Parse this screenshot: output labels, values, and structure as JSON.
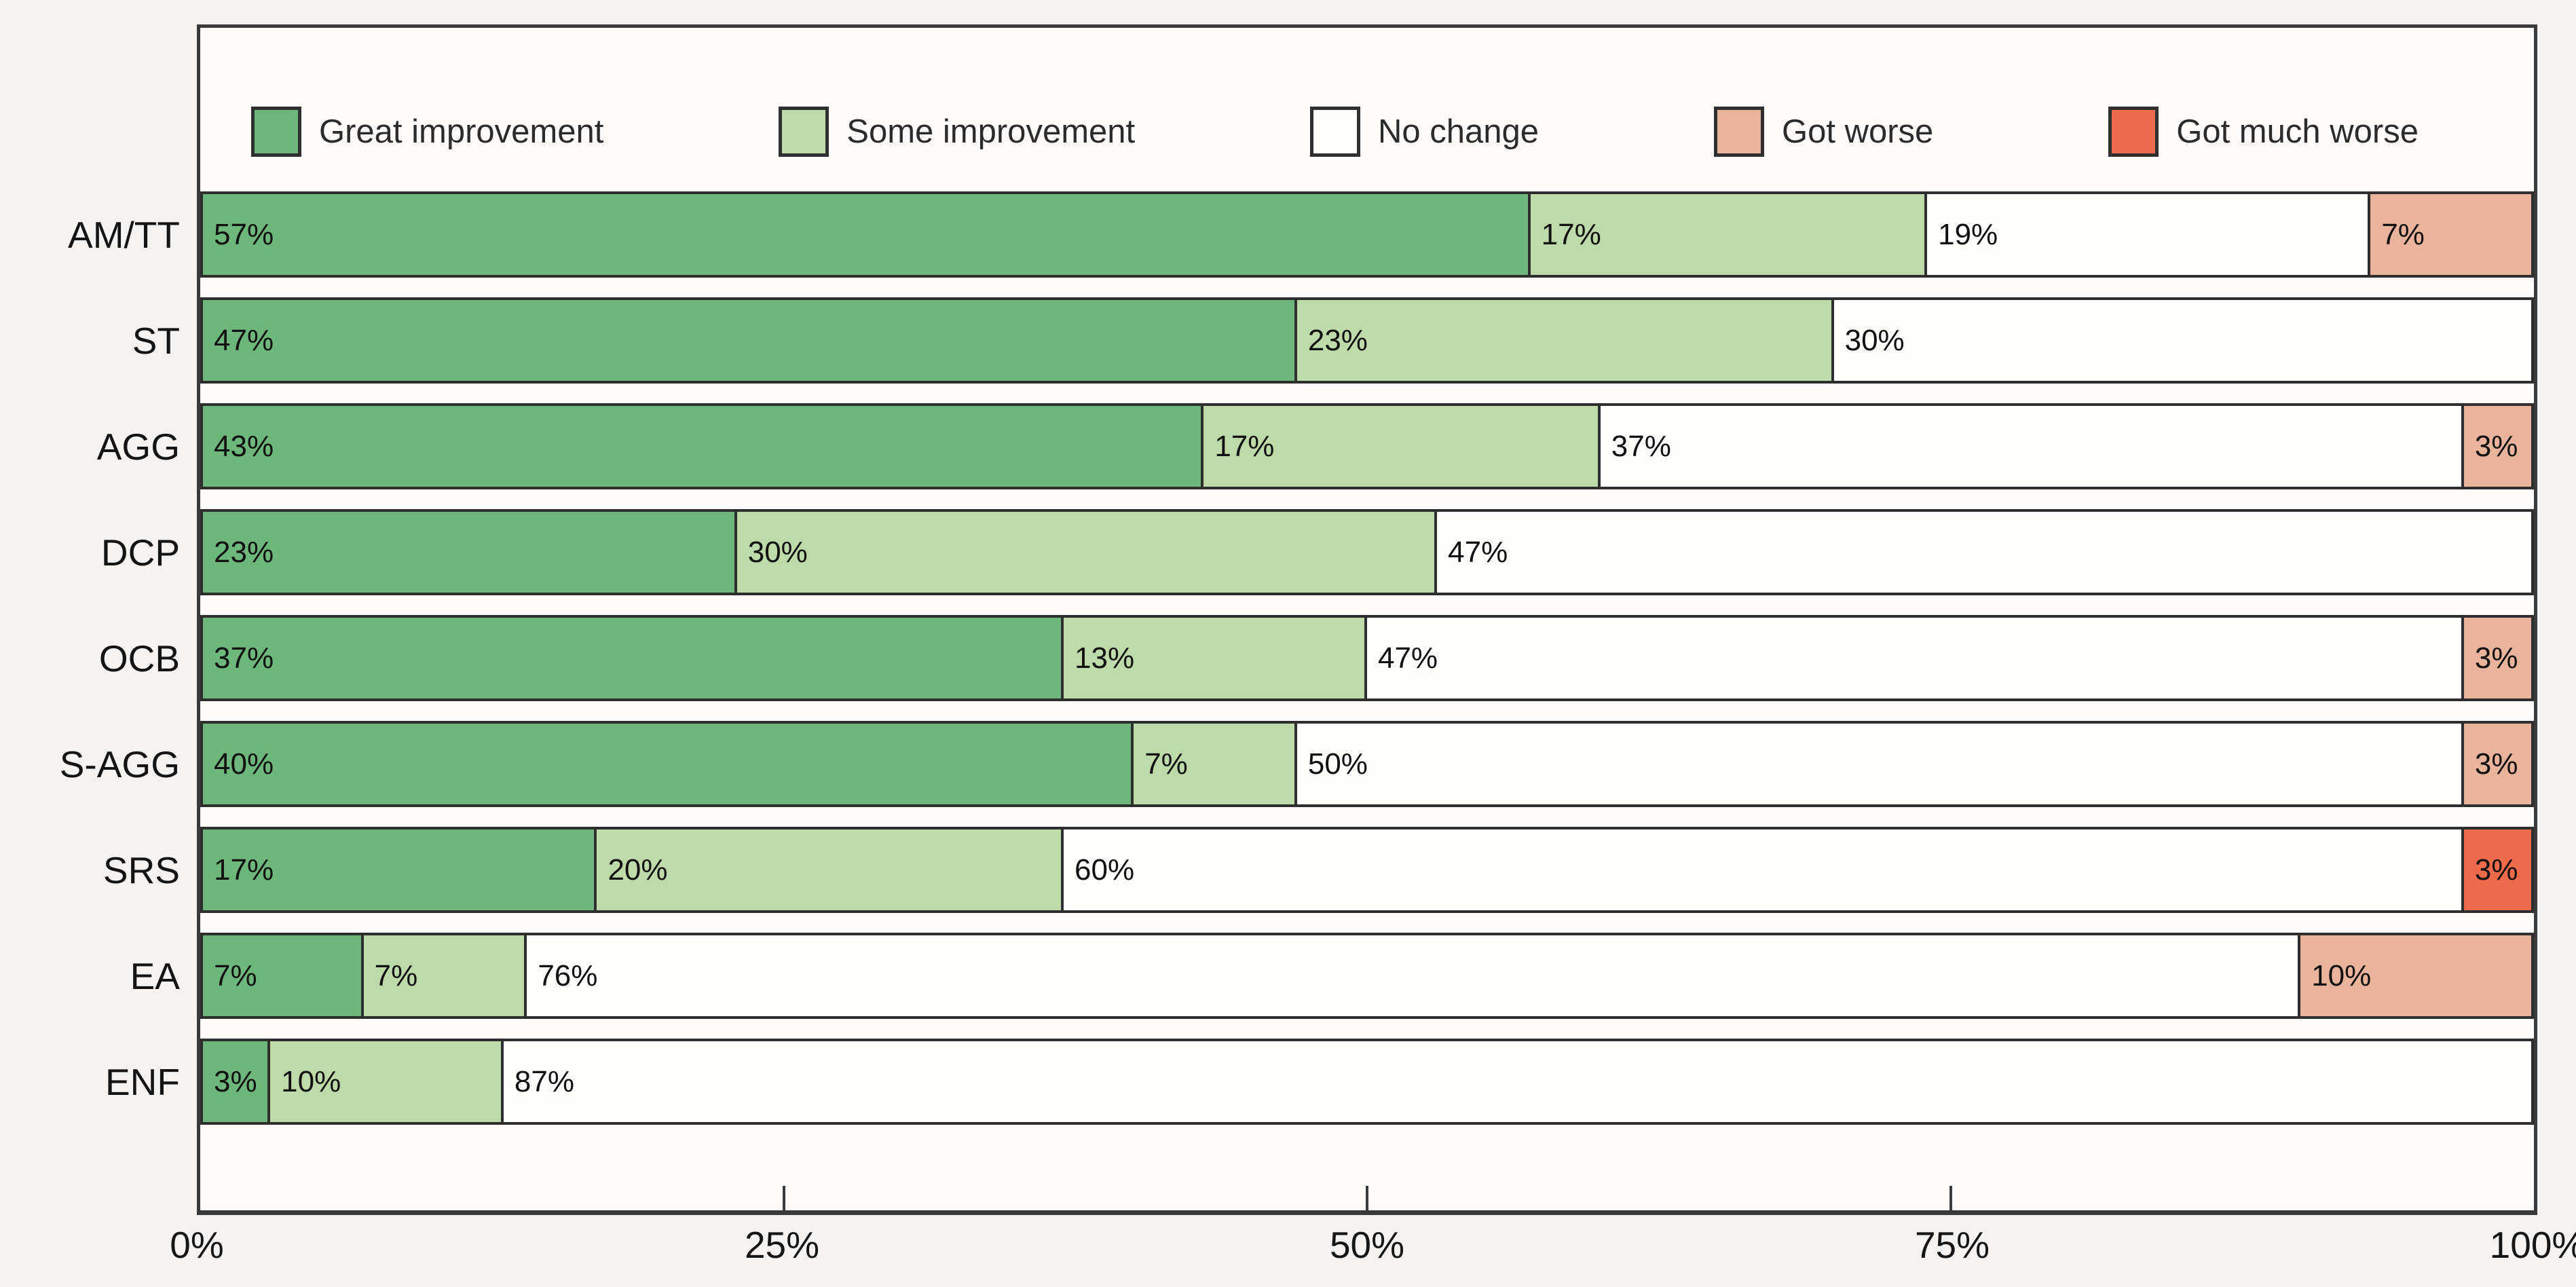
{
  "chart_data": {
    "type": "bar",
    "orientation": "horizontal-stacked",
    "title": "",
    "xlabel": "",
    "ylabel": "",
    "xlim": [
      0,
      100
    ],
    "x_ticks": [
      "0%",
      "25%",
      "50%",
      "75%",
      "100%"
    ],
    "x_tick_values": [
      0,
      25,
      50,
      75,
      100
    ],
    "legend_position": "top",
    "grid": false,
    "value_suffix": "%",
    "categories": [
      "AM/TT",
      "ST",
      "AGG",
      "DCP",
      "OCB",
      "S-AGG",
      "SRS",
      "EA",
      "ENF"
    ],
    "series": [
      {
        "name": "Great improvement",
        "values": [
          57,
          47,
          43,
          23,
          37,
          40,
          17,
          7,
          3
        ]
      },
      {
        "name": "Some improvement",
        "values": [
          17,
          23,
          17,
          30,
          13,
          7,
          20,
          7,
          10
        ]
      },
      {
        "name": "No change",
        "values": [
          19,
          30,
          37,
          47,
          47,
          50,
          60,
          76,
          87
        ]
      },
      {
        "name": "Got worse",
        "values": [
          7,
          0,
          3,
          0,
          3,
          3,
          0,
          10,
          0
        ]
      },
      {
        "name": "Got much worse",
        "values": [
          0,
          0,
          0,
          0,
          0,
          0,
          3,
          0,
          0
        ]
      }
    ],
    "colors": {
      "Great improvement": "#6db77c",
      "Some improvement": "#bddaa8",
      "No change": "#fdfdfc",
      "Got worse": "#e9b49b",
      "Got much worse": "#ed6a4b"
    },
    "border_color": "#2e2e2e",
    "frame_color": "#3a3a3a"
  }
}
